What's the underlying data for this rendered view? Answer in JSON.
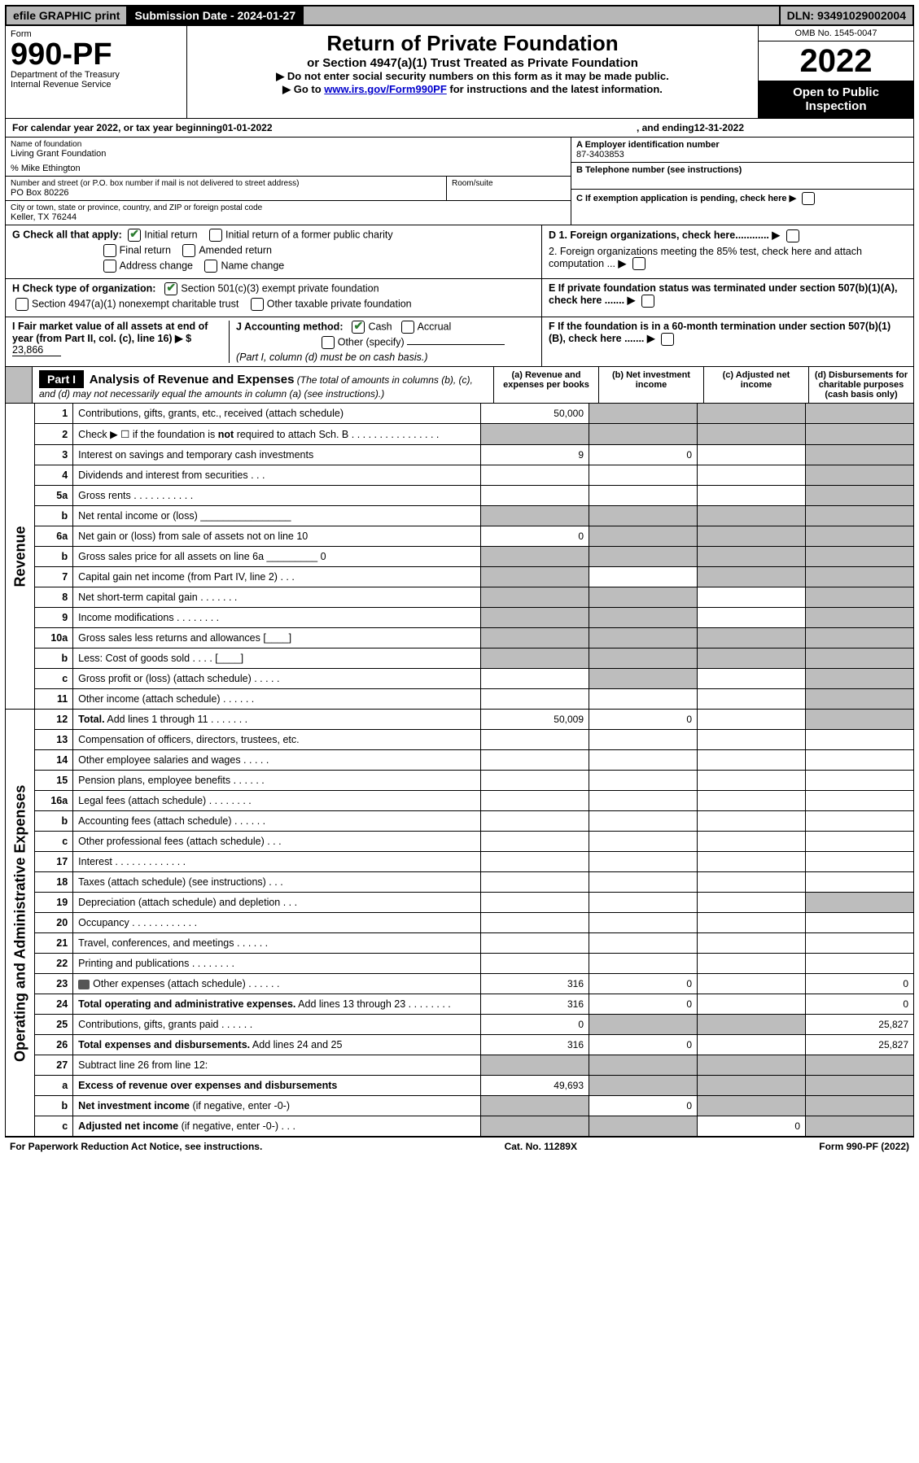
{
  "colors": {
    "border": "#000000",
    "shade": "#bdbdbd",
    "topbar_grey": "#b7b7b7",
    "link": "#0000cc",
    "check_green": "#2e7d32"
  },
  "topbar": {
    "efile": "efile GRAPHIC print",
    "submission_label": "Submission Date - ",
    "submission_date": "2024-01-27",
    "dln_label": "DLN: ",
    "dln": "93491029002004"
  },
  "header": {
    "form_label": "Form",
    "form_number": "990-PF",
    "dept1": "Department of the Treasury",
    "dept2": "Internal Revenue Service",
    "title": "Return of Private Foundation",
    "subtitle": "or Section 4947(a)(1) Trust Treated as Private Foundation",
    "instr1": "▶ Do not enter social security numbers on this form as it may be made public.",
    "instr2_pre": "▶ Go to ",
    "instr2_link": "www.irs.gov/Form990PF",
    "instr2_post": " for instructions and the latest information.",
    "omb": "OMB No. 1545-0047",
    "year": "2022",
    "open": "Open to Public Inspection"
  },
  "calendar": {
    "text1": "For calendar year 2022, or tax year beginning ",
    "begin": "01-01-2022",
    "text2": ", and ending ",
    "end": "12-31-2022"
  },
  "entity": {
    "name_label": "Name of foundation",
    "name": "Living Grant Foundation",
    "co_line": "% Mike Ethington",
    "addr_label": "Number and street (or P.O. box number if mail is not delivered to street address)",
    "addr": "PO Box 80226",
    "room_label": "Room/suite",
    "city_label": "City or town, state or province, country, and ZIP or foreign postal code",
    "city": "Keller, TX  76244",
    "A_label": "A Employer identification number",
    "A_val": "87-3403853",
    "B_label": "B Telephone number (see instructions)",
    "C_label": "C If exemption application is pending, check here",
    "D1_label": "D 1. Foreign organizations, check here............",
    "D2_label": "2. Foreign organizations meeting the 85% test, check here and attach computation ...",
    "E_label": "E If private foundation status was terminated under section 507(b)(1)(A), check here .......",
    "F_label": "F If the foundation is in a 60-month termination under section 507(b)(1)(B), check here .......",
    "G_label": "G Check all that apply:",
    "G_opts": [
      "Initial return",
      "Initial return of a former public charity",
      "Final return",
      "Amended return",
      "Address change",
      "Name change"
    ],
    "G_checked": [
      true,
      false,
      false,
      false,
      false,
      false
    ],
    "H_label": "H Check type of organization:",
    "H_opts": [
      "Section 501(c)(3) exempt private foundation",
      "Section 4947(a)(1) nonexempt charitable trust",
      "Other taxable private foundation"
    ],
    "H_checked": [
      true,
      false,
      false
    ],
    "I_label": "I Fair market value of all assets at end of year (from Part II, col. (c), line 16) ▶ $",
    "I_val": "23,866",
    "J_label": "J Accounting method:",
    "J_opts": [
      "Cash",
      "Accrual",
      "Other (specify)"
    ],
    "J_checked": [
      true,
      false,
      false
    ],
    "J_note": "(Part I, column (d) must be on cash basis.)"
  },
  "partI": {
    "badge": "Part I",
    "title": "Analysis of Revenue and Expenses",
    "title_note": "(The total of amounts in columns (b), (c), and (d) may not necessarily equal the amounts in column (a) (see instructions).)",
    "cols": [
      "(a) Revenue and expenses per books",
      "(b) Net investment income",
      "(c) Adjusted net income",
      "(d) Disbursements for charitable purposes (cash basis only)"
    ]
  },
  "sections": {
    "revenue": "Revenue",
    "opex": "Operating and Administrative Expenses"
  },
  "rows": [
    {
      "n": "1",
      "d": "Contributions, gifts, grants, etc., received (attach schedule)",
      "a": "50,000",
      "b": "",
      "c": "",
      "dcol": "",
      "sh": [
        "",
        "s",
        "s",
        "s"
      ]
    },
    {
      "n": "2",
      "d": "Check ▶ ☐ if the foundation is <b>not</b> required to attach Sch. B   . . . . . . . . . . . . . . . .",
      "a": "",
      "b": "",
      "c": "",
      "dcol": "",
      "sh": [
        "s",
        "s",
        "s",
        "s"
      ]
    },
    {
      "n": "3",
      "d": "Interest on savings and temporary cash investments",
      "a": "9",
      "b": "0",
      "c": "",
      "dcol": "",
      "sh": [
        "",
        "",
        "",
        "s"
      ]
    },
    {
      "n": "4",
      "d": "Dividends and interest from securities   .   .   .",
      "a": "",
      "b": "",
      "c": "",
      "dcol": "",
      "sh": [
        "",
        "",
        "",
        "s"
      ]
    },
    {
      "n": "5a",
      "d": "Gross rents   .   .   .   .   .   .   .   .   .   .   .",
      "a": "",
      "b": "",
      "c": "",
      "dcol": "",
      "sh": [
        "",
        "",
        "",
        "s"
      ]
    },
    {
      "n": "b",
      "d": "Net rental income or (loss) ________________",
      "a": "",
      "b": "",
      "c": "",
      "dcol": "",
      "sh": [
        "s",
        "s",
        "s",
        "s"
      ]
    },
    {
      "n": "6a",
      "d": "Net gain or (loss) from sale of assets not on line 10",
      "a": "0",
      "b": "",
      "c": "",
      "dcol": "",
      "sh": [
        "",
        "s",
        "s",
        "s"
      ]
    },
    {
      "n": "b",
      "d": "Gross sales price for all assets on line 6a _________ 0",
      "a": "",
      "b": "",
      "c": "",
      "dcol": "",
      "sh": [
        "s",
        "s",
        "s",
        "s"
      ]
    },
    {
      "n": "7",
      "d": "Capital gain net income (from Part IV, line 2)   .   .   .",
      "a": "",
      "b": "",
      "c": "",
      "dcol": "",
      "sh": [
        "s",
        "",
        "s",
        "s"
      ]
    },
    {
      "n": "8",
      "d": "Net short-term capital gain   .   .   .   .   .   .   .",
      "a": "",
      "b": "",
      "c": "",
      "dcol": "",
      "sh": [
        "s",
        "s",
        "",
        "s"
      ]
    },
    {
      "n": "9",
      "d": "Income modifications   .   .   .   .   .   .   .   .",
      "a": "",
      "b": "",
      "c": "",
      "dcol": "",
      "sh": [
        "s",
        "s",
        "",
        "s"
      ]
    },
    {
      "n": "10a",
      "d": "Gross sales less returns and allowances   [____]",
      "a": "",
      "b": "",
      "c": "",
      "dcol": "",
      "sh": [
        "s",
        "s",
        "s",
        "s"
      ]
    },
    {
      "n": "b",
      "d": "Less: Cost of goods sold   .   .   .   .   [____]",
      "a": "",
      "b": "",
      "c": "",
      "dcol": "",
      "sh": [
        "s",
        "s",
        "s",
        "s"
      ]
    },
    {
      "n": "c",
      "d": "Gross profit or (loss) (attach schedule)   .   .   .   .   .",
      "a": "",
      "b": "",
      "c": "",
      "dcol": "",
      "sh": [
        "",
        "s",
        "",
        "s"
      ]
    },
    {
      "n": "11",
      "d": "Other income (attach schedule)   .   .   .   .   .   .",
      "a": "",
      "b": "",
      "c": "",
      "dcol": "",
      "sh": [
        "",
        "",
        "",
        "s"
      ]
    },
    {
      "n": "12",
      "d": "<b>Total.</b> Add lines 1 through 11   .   .   .   .   .   .   .",
      "a": "50,009",
      "b": "0",
      "c": "",
      "dcol": "",
      "sh": [
        "",
        "",
        "",
        "s"
      ]
    },
    {
      "n": "13",
      "d": "Compensation of officers, directors, trustees, etc.",
      "a": "",
      "b": "",
      "c": "",
      "dcol": "",
      "sh": [
        "",
        "",
        "",
        ""
      ]
    },
    {
      "n": "14",
      "d": "Other employee salaries and wages   .   .   .   .   .",
      "a": "",
      "b": "",
      "c": "",
      "dcol": "",
      "sh": [
        "",
        "",
        "",
        ""
      ]
    },
    {
      "n": "15",
      "d": "Pension plans, employee benefits   .   .   .   .   .   .",
      "a": "",
      "b": "",
      "c": "",
      "dcol": "",
      "sh": [
        "",
        "",
        "",
        ""
      ]
    },
    {
      "n": "16a",
      "d": "Legal fees (attach schedule)   .   .   .   .   .   .   .   .",
      "a": "",
      "b": "",
      "c": "",
      "dcol": "",
      "sh": [
        "",
        "",
        "",
        ""
      ]
    },
    {
      "n": "b",
      "d": "Accounting fees (attach schedule)   .   .   .   .   .   .",
      "a": "",
      "b": "",
      "c": "",
      "dcol": "",
      "sh": [
        "",
        "",
        "",
        ""
      ]
    },
    {
      "n": "c",
      "d": "Other professional fees (attach schedule)   .   .   .",
      "a": "",
      "b": "",
      "c": "",
      "dcol": "",
      "sh": [
        "",
        "",
        "",
        ""
      ]
    },
    {
      "n": "17",
      "d": "Interest   .   .   .   .   .   .   .   .   .   .   .   .   .",
      "a": "",
      "b": "",
      "c": "",
      "dcol": "",
      "sh": [
        "",
        "",
        "",
        ""
      ]
    },
    {
      "n": "18",
      "d": "Taxes (attach schedule) (see instructions)   .   .   .",
      "a": "",
      "b": "",
      "c": "",
      "dcol": "",
      "sh": [
        "",
        "",
        "",
        ""
      ]
    },
    {
      "n": "19",
      "d": "Depreciation (attach schedule) and depletion   .   .   .",
      "a": "",
      "b": "",
      "c": "",
      "dcol": "",
      "sh": [
        "",
        "",
        "",
        "s"
      ]
    },
    {
      "n": "20",
      "d": "Occupancy   .   .   .   .   .   .   .   .   .   .   .   .",
      "a": "",
      "b": "",
      "c": "",
      "dcol": "",
      "sh": [
        "",
        "",
        "",
        ""
      ]
    },
    {
      "n": "21",
      "d": "Travel, conferences, and meetings   .   .   .   .   .   .",
      "a": "",
      "b": "",
      "c": "",
      "dcol": "",
      "sh": [
        "",
        "",
        "",
        ""
      ]
    },
    {
      "n": "22",
      "d": "Printing and publications   .   .   .   .   .   .   .   .",
      "a": "",
      "b": "",
      "c": "",
      "dcol": "",
      "sh": [
        "",
        "",
        "",
        ""
      ]
    },
    {
      "n": "23",
      "d": "Other expenses (attach schedule)  .   .   .   .   .   .",
      "a": "316",
      "b": "0",
      "c": "",
      "dcol": "0",
      "sh": [
        "",
        "",
        "",
        ""
      ],
      "icon": true
    },
    {
      "n": "24",
      "d": "<b>Total operating and administrative expenses.</b> Add lines 13 through 23   .   .   .   .   .   .   .   .",
      "a": "316",
      "b": "0",
      "c": "",
      "dcol": "0",
      "sh": [
        "",
        "",
        "",
        ""
      ]
    },
    {
      "n": "25",
      "d": "Contributions, gifts, grants paid   .   .   .   .   .   .",
      "a": "0",
      "b": "",
      "c": "",
      "dcol": "25,827",
      "sh": [
        "",
        "s",
        "s",
        ""
      ]
    },
    {
      "n": "26",
      "d": "<b>Total expenses and disbursements.</b> Add lines 24 and 25",
      "a": "316",
      "b": "0",
      "c": "",
      "dcol": "25,827",
      "sh": [
        "",
        "",
        "",
        ""
      ]
    },
    {
      "n": "27",
      "d": "Subtract line 26 from line 12:",
      "a": "",
      "b": "",
      "c": "",
      "dcol": "",
      "sh": [
        "s",
        "s",
        "s",
        "s"
      ]
    },
    {
      "n": "a",
      "d": "<b>Excess of revenue over expenses and disbursements</b>",
      "a": "49,693",
      "b": "",
      "c": "",
      "dcol": "",
      "sh": [
        "",
        "s",
        "s",
        "s"
      ]
    },
    {
      "n": "b",
      "d": "<b>Net investment income</b> (if negative, enter -0-)",
      "a": "",
      "b": "0",
      "c": "",
      "dcol": "",
      "sh": [
        "s",
        "",
        "s",
        "s"
      ]
    },
    {
      "n": "c",
      "d": "<b>Adjusted net income</b> (if negative, enter -0-)   .   .   .",
      "a": "",
      "b": "",
      "c": "0",
      "dcol": "",
      "sh": [
        "s",
        "s",
        "",
        "s"
      ]
    }
  ],
  "revenue_rows": 15,
  "footer": {
    "left": "For Paperwork Reduction Act Notice, see instructions.",
    "mid": "Cat. No. 11289X",
    "right": "Form 990-PF (2022)"
  }
}
